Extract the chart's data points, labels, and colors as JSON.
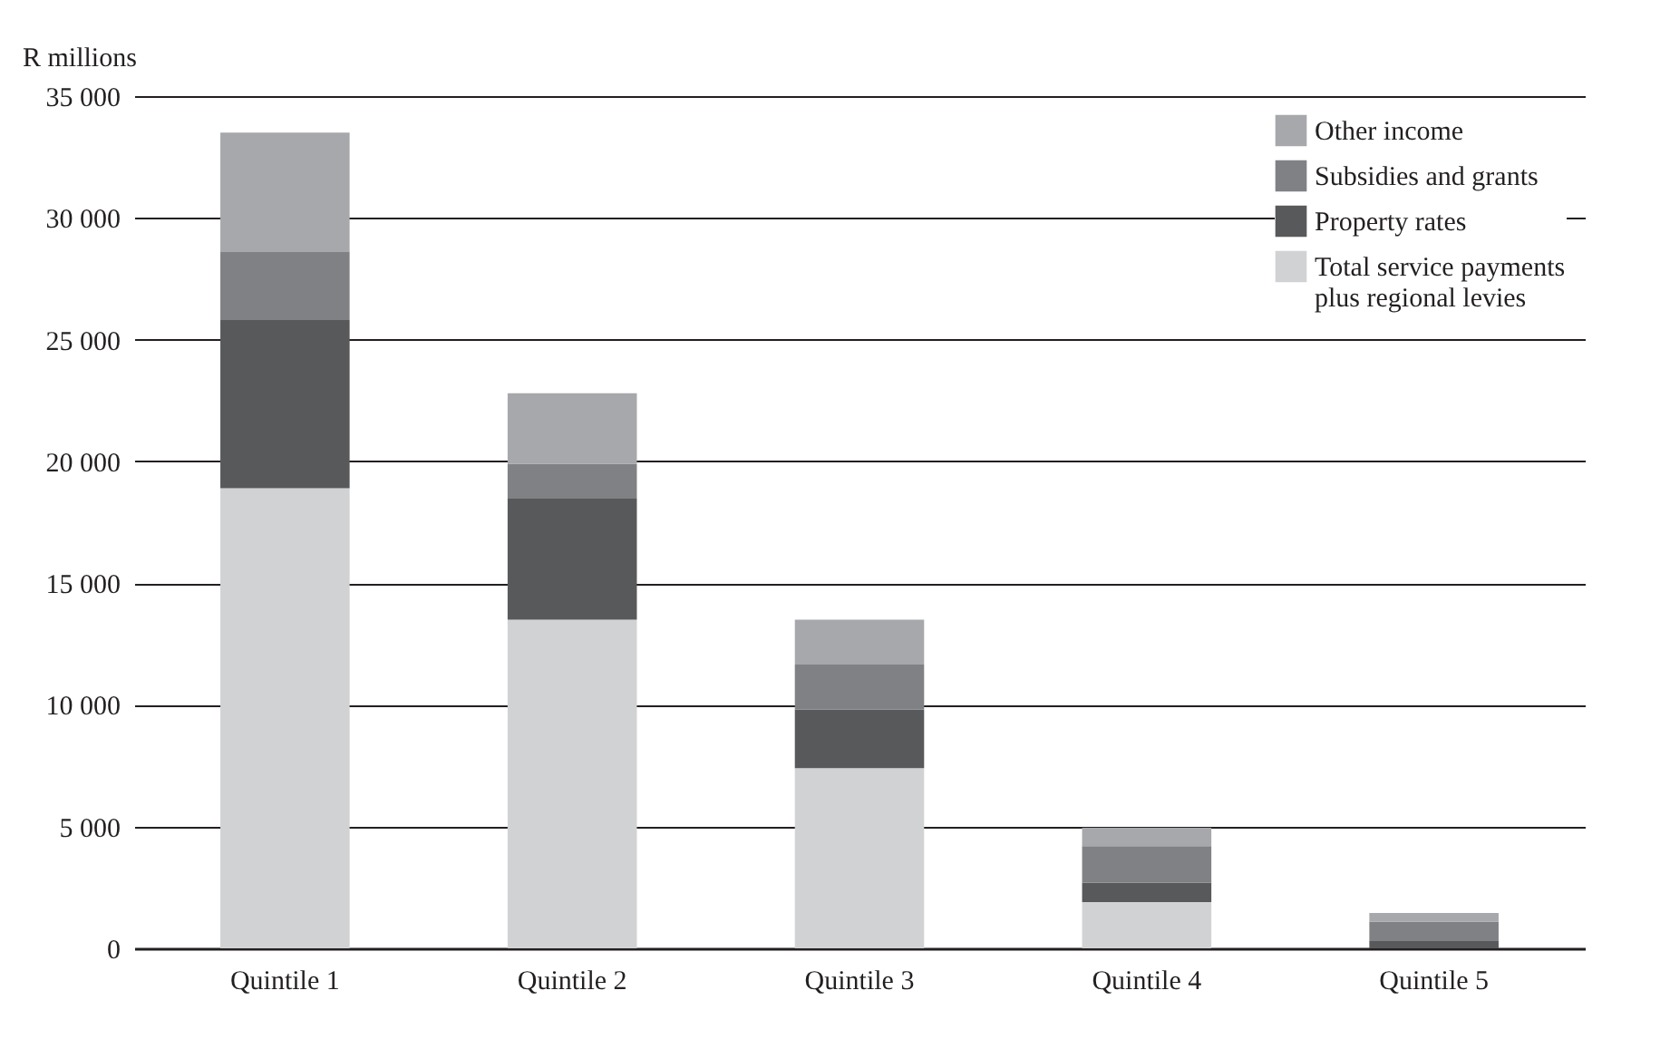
{
  "chart_data": {
    "type": "bar",
    "stacked": true,
    "ylabel": "R millions",
    "categories": [
      "Quintile 1",
      "Quintile 2",
      "Quintile 3",
      "Quintile 4",
      "Quintile 5"
    ],
    "series": [
      {
        "name": "Total service payments plus regional levies",
        "color": "#d1d2d4",
        "values": [
          18900,
          13500,
          7400,
          1900,
          null
        ]
      },
      {
        "name": "Property rates",
        "color": "#58595b",
        "values": [
          6900,
          5000,
          2400,
          800,
          300
        ]
      },
      {
        "name": "Subsidies and grants",
        "color": "#808184",
        "values": [
          2800,
          1400,
          1850,
          1500,
          800
        ]
      },
      {
        "name": "Other income",
        "color": "#a7a8ab",
        "values": [
          4900,
          2900,
          1850,
          750,
          350
        ]
      }
    ],
    "ylim": [
      0,
      35000
    ],
    "yticks": [
      {
        "value": 0,
        "label": "0"
      },
      {
        "value": 5000,
        "label": "5 000"
      },
      {
        "value": 10000,
        "label": "10 000"
      },
      {
        "value": 15000,
        "label": "15 000"
      },
      {
        "value": 20000,
        "label": "20 000"
      },
      {
        "value": 25000,
        "label": "25 000"
      },
      {
        "value": 30000,
        "label": "30 000"
      },
      {
        "value": 35000,
        "label": "35 000"
      }
    ],
    "grid": "y",
    "legend": "top right"
  }
}
